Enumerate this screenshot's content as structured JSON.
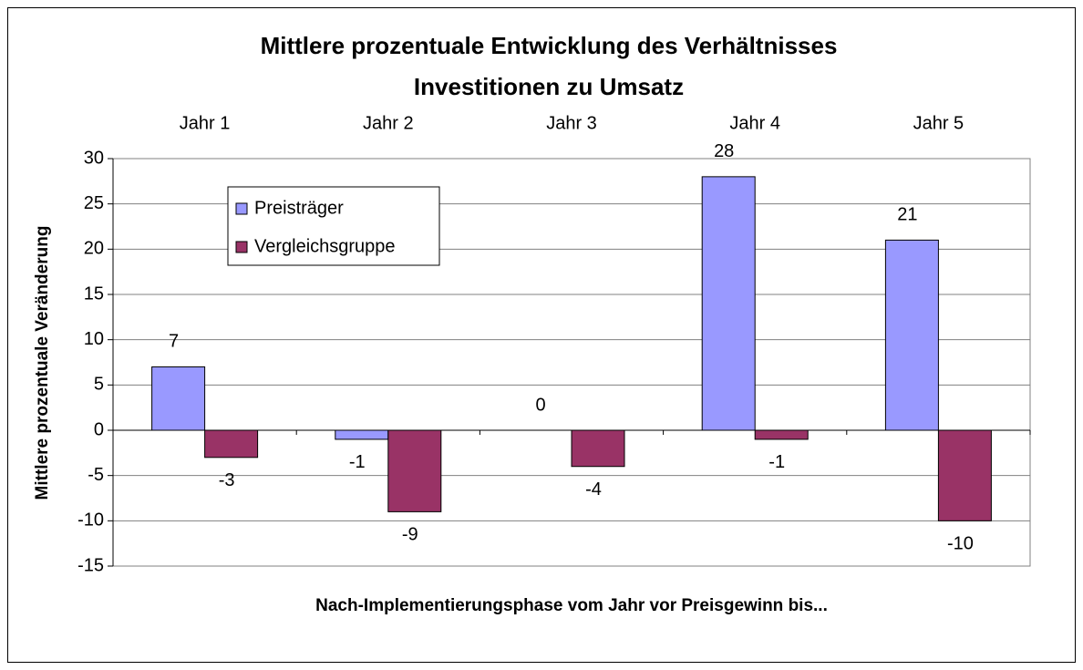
{
  "chart_data": {
    "type": "bar",
    "title": [
      "Mittlere prozentuale Entwicklung des Verhältnisses",
      "Investitionen zu Umsatz"
    ],
    "x_label": "Nach-Implementierungsphase vom Jahr vor Preisgewinn bis...",
    "y_label": "Mittlere prozentuale Veränderung",
    "categories": [
      "Jahr 1",
      "Jahr 2",
      "Jahr 3",
      "Jahr 4",
      "Jahr 5"
    ],
    "series": [
      {
        "name": "Preisträger",
        "color": "#9999ff",
        "values": [
          7,
          -1,
          0,
          28,
          21
        ]
      },
      {
        "name": "Vergleichsgruppe",
        "color": "#993366",
        "values": [
          -3,
          -9,
          -4,
          -1,
          -10
        ]
      }
    ],
    "ylim": [
      -15,
      30
    ],
    "yticks": [
      -15,
      -10,
      -5,
      0,
      5,
      10,
      15,
      20,
      25,
      30
    ],
    "grid": true
  }
}
